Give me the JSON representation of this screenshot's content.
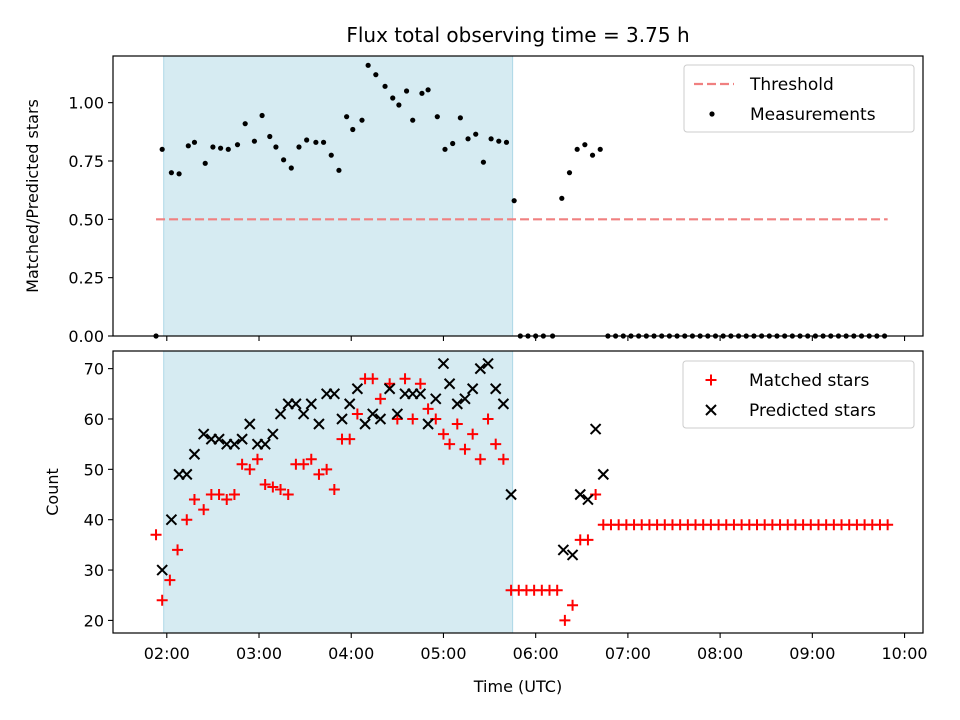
{
  "chart_data": [
    {
      "type": "scatter",
      "title": "Flux total observing time = 3.75 h",
      "ylabel": "Matched/Predicted stars",
      "xlabel": "",
      "ylim": [
        0.0,
        1.2
      ],
      "yticks": [
        0.0,
        0.25,
        0.5,
        0.75,
        1.0
      ],
      "ytick_labels": [
        "0.00",
        "0.25",
        "0.50",
        "0.75",
        "1.00"
      ],
      "xlim": [
        "01:25",
        "10:12"
      ],
      "xticks": [
        "02:00",
        "03:00",
        "04:00",
        "05:00",
        "06:00",
        "07:00",
        "08:00",
        "09:00",
        "10:00"
      ],
      "x_tick_labels_visible": false,
      "shaded_interval": {
        "from": "01:58",
        "to": "05:45",
        "color": "#add8e6"
      },
      "threshold": {
        "name": "Threshold",
        "value": 0.5,
        "from": "01:53",
        "to": "09:49",
        "color": "#f08080",
        "style": "dashed"
      },
      "legend_position": "upper right",
      "series": [
        {
          "name": "Measurements",
          "marker": "dot",
          "color": "#000000",
          "points": [
            [
              "01:53",
              0.0
            ],
            [
              "01:57",
              0.8
            ],
            [
              "02:03",
              0.7
            ],
            [
              "02:08",
              0.695
            ],
            [
              "02:14",
              0.815
            ],
            [
              "02:18",
              0.83
            ],
            [
              "02:25",
              0.74
            ],
            [
              "02:30",
              0.81
            ],
            [
              "02:35",
              0.805
            ],
            [
              "02:40",
              0.8
            ],
            [
              "02:46",
              0.82
            ],
            [
              "02:51",
              0.91
            ],
            [
              "02:57",
              0.835
            ],
            [
              "03:02",
              0.945
            ],
            [
              "03:07",
              0.855
            ],
            [
              "03:11",
              0.81
            ],
            [
              "03:16",
              0.755
            ],
            [
              "03:21",
              0.72
            ],
            [
              "03:26",
              0.81
            ],
            [
              "03:31",
              0.84
            ],
            [
              "03:37",
              0.83
            ],
            [
              "03:42",
              0.83
            ],
            [
              "03:47",
              0.775
            ],
            [
              "03:52",
              0.71
            ],
            [
              "03:57",
              0.94
            ],
            [
              "04:01",
              0.885
            ],
            [
              "04:07",
              0.925
            ],
            [
              "04:11",
              1.16
            ],
            [
              "04:16",
              1.12
            ],
            [
              "04:22",
              1.07
            ],
            [
              "04:27",
              1.02
            ],
            [
              "04:31",
              0.99
            ],
            [
              "04:36",
              1.05
            ],
            [
              "04:40",
              0.925
            ],
            [
              "04:46",
              1.04
            ],
            [
              "04:50",
              1.055
            ],
            [
              "04:56",
              0.94
            ],
            [
              "05:01",
              0.8
            ],
            [
              "05:06",
              0.825
            ],
            [
              "05:11",
              0.935
            ],
            [
              "05:16",
              0.845
            ],
            [
              "05:21",
              0.865
            ],
            [
              "05:26",
              0.745
            ],
            [
              "05:31",
              0.845
            ],
            [
              "05:36",
              0.835
            ],
            [
              "05:41",
              0.83
            ],
            [
              "05:46",
              0.58
            ],
            [
              "05:50",
              0.0
            ],
            [
              "05:55",
              0.0
            ],
            [
              "06:00",
              0.0
            ],
            [
              "06:05",
              0.0
            ],
            [
              "06:11",
              0.0
            ],
            [
              "06:17",
              0.59
            ],
            [
              "06:22",
              0.7
            ],
            [
              "06:27",
              0.8
            ],
            [
              "06:32",
              0.82
            ],
            [
              "06:37",
              0.775
            ],
            [
              "06:42",
              0.8
            ],
            [
              "06:47",
              0.0
            ],
            [
              "06:52",
              0.0
            ],
            [
              "06:57",
              0.0
            ],
            [
              "07:02",
              0.0
            ],
            [
              "07:07",
              0.0
            ],
            [
              "07:12",
              0.0
            ],
            [
              "07:17",
              0.0
            ],
            [
              "07:22",
              0.0
            ],
            [
              "07:27",
              0.0
            ],
            [
              "07:32",
              0.0
            ],
            [
              "07:37",
              0.0
            ],
            [
              "07:42",
              0.0
            ],
            [
              "07:47",
              0.0
            ],
            [
              "07:52",
              0.0
            ],
            [
              "07:57",
              0.0
            ],
            [
              "08:02",
              0.0
            ],
            [
              "08:07",
              0.0
            ],
            [
              "08:12",
              0.0
            ],
            [
              "08:17",
              0.0
            ],
            [
              "08:22",
              0.0
            ],
            [
              "08:27",
              0.0
            ],
            [
              "08:32",
              0.0
            ],
            [
              "08:37",
              0.0
            ],
            [
              "08:42",
              0.0
            ],
            [
              "08:47",
              0.0
            ],
            [
              "08:52",
              0.0
            ],
            [
              "08:57",
              0.0
            ],
            [
              "09:02",
              0.0
            ],
            [
              "09:07",
              0.0
            ],
            [
              "09:12",
              0.0
            ],
            [
              "09:17",
              0.0
            ],
            [
              "09:22",
              0.0
            ],
            [
              "09:27",
              0.0
            ],
            [
              "09:32",
              0.0
            ],
            [
              "09:37",
              0.0
            ],
            [
              "09:42",
              0.0
            ],
            [
              "09:47",
              0.0
            ]
          ]
        }
      ]
    },
    {
      "type": "scatter",
      "title": "",
      "ylabel": "Count",
      "xlabel": "Time (UTC)",
      "ylim": [
        17.5,
        73.5
      ],
      "yticks": [
        20,
        30,
        40,
        50,
        60,
        70
      ],
      "ytick_labels": [
        "20",
        "30",
        "40",
        "50",
        "60",
        "70"
      ],
      "xlim": [
        "01:25",
        "10:12"
      ],
      "xticks": [
        "02:00",
        "03:00",
        "04:00",
        "05:00",
        "06:00",
        "07:00",
        "08:00",
        "09:00",
        "10:00"
      ],
      "xtick_labels": [
        "02:00",
        "03:00",
        "04:00",
        "05:00",
        "06:00",
        "07:00",
        "08:00",
        "09:00",
        "10:00"
      ],
      "shaded_interval": {
        "from": "01:58",
        "to": "05:45",
        "color": "#add8e6"
      },
      "legend_position": "upper right",
      "series": [
        {
          "name": "Matched stars",
          "marker": "plus",
          "color": "#ff0000",
          "points": [
            [
              "01:53",
              37
            ],
            [
              "01:57",
              24
            ],
            [
              "02:02",
              28
            ],
            [
              "02:07",
              34
            ],
            [
              "02:13",
              40
            ],
            [
              "02:18",
              44
            ],
            [
              "02:24",
              42
            ],
            [
              "02:29",
              45
            ],
            [
              "02:34",
              45
            ],
            [
              "02:39",
              44
            ],
            [
              "02:44",
              45
            ],
            [
              "02:49",
              51
            ],
            [
              "02:54",
              50
            ],
            [
              "02:59",
              52
            ],
            [
              "03:04",
              47
            ],
            [
              "03:09",
              46.5
            ],
            [
              "03:14",
              46
            ],
            [
              "03:19",
              45
            ],
            [
              "03:24",
              51
            ],
            [
              "03:29",
              51
            ],
            [
              "03:34",
              52
            ],
            [
              "03:39",
              49
            ],
            [
              "03:44",
              50
            ],
            [
              "03:49",
              46
            ],
            [
              "03:54",
              56
            ],
            [
              "03:59",
              56
            ],
            [
              "04:04",
              61
            ],
            [
              "04:09",
              68
            ],
            [
              "04:14",
              68
            ],
            [
              "04:19",
              64
            ],
            [
              "04:25",
              67
            ],
            [
              "04:30",
              60
            ],
            [
              "04:35",
              68
            ],
            [
              "04:40",
              60
            ],
            [
              "04:45",
              67
            ],
            [
              "04:50",
              62
            ],
            [
              "04:55",
              60
            ],
            [
              "05:00",
              57
            ],
            [
              "05:04",
              55
            ],
            [
              "05:09",
              59
            ],
            [
              "05:14",
              54
            ],
            [
              "05:19",
              57
            ],
            [
              "05:24",
              52
            ],
            [
              "05:29",
              60
            ],
            [
              "05:34",
              55
            ],
            [
              "05:39",
              52
            ],
            [
              "05:44",
              26
            ],
            [
              "05:49",
              26
            ],
            [
              "05:54",
              26
            ],
            [
              "05:59",
              26
            ],
            [
              "06:04",
              26
            ],
            [
              "06:09",
              26
            ],
            [
              "06:14",
              26
            ],
            [
              "06:19",
              20
            ],
            [
              "06:24",
              23
            ],
            [
              "06:29",
              36
            ],
            [
              "06:34",
              36
            ],
            [
              "06:39",
              45
            ],
            [
              "06:44",
              39
            ],
            [
              "06:49",
              39
            ],
            [
              "06:54",
              39
            ],
            [
              "06:59",
              39
            ],
            [
              "07:04",
              39
            ],
            [
              "07:09",
              39
            ],
            [
              "07:14",
              39
            ],
            [
              "07:19",
              39
            ],
            [
              "07:24",
              39
            ],
            [
              "07:29",
              39
            ],
            [
              "07:34",
              39
            ],
            [
              "07:39",
              39
            ],
            [
              "07:44",
              39
            ],
            [
              "07:49",
              39
            ],
            [
              "07:54",
              39
            ],
            [
              "07:59",
              39
            ],
            [
              "08:04",
              39
            ],
            [
              "08:09",
              39
            ],
            [
              "08:14",
              39
            ],
            [
              "08:19",
              39
            ],
            [
              "08:24",
              39
            ],
            [
              "08:29",
              39
            ],
            [
              "08:34",
              39
            ],
            [
              "08:39",
              39
            ],
            [
              "08:44",
              39
            ],
            [
              "08:49",
              39
            ],
            [
              "08:54",
              39
            ],
            [
              "08:59",
              39
            ],
            [
              "09:04",
              39
            ],
            [
              "09:09",
              39
            ],
            [
              "09:14",
              39
            ],
            [
              "09:19",
              39
            ],
            [
              "09:24",
              39
            ],
            [
              "09:29",
              39
            ],
            [
              "09:34",
              39
            ],
            [
              "09:39",
              39
            ],
            [
              "09:44",
              39
            ],
            [
              "09:49",
              39
            ]
          ]
        },
        {
          "name": "Predicted stars",
          "marker": "x",
          "color": "#000000",
          "points": [
            [
              "01:57",
              30
            ],
            [
              "02:03",
              40
            ],
            [
              "02:08",
              49
            ],
            [
              "02:13",
              49
            ],
            [
              "02:18",
              53
            ],
            [
              "02:24",
              57
            ],
            [
              "02:29",
              56
            ],
            [
              "02:34",
              56
            ],
            [
              "02:39",
              55
            ],
            [
              "02:44",
              55
            ],
            [
              "02:49",
              56
            ],
            [
              "02:54",
              59
            ],
            [
              "02:59",
              55
            ],
            [
              "03:04",
              55
            ],
            [
              "03:09",
              57
            ],
            [
              "03:14",
              61
            ],
            [
              "03:19",
              63
            ],
            [
              "03:24",
              63
            ],
            [
              "03:29",
              61
            ],
            [
              "03:34",
              63
            ],
            [
              "03:39",
              59
            ],
            [
              "03:44",
              65
            ],
            [
              "03:49",
              65
            ],
            [
              "03:54",
              60
            ],
            [
              "03:59",
              63
            ],
            [
              "04:04",
              66
            ],
            [
              "04:09",
              59
            ],
            [
              "04:14",
              61
            ],
            [
              "04:19",
              60
            ],
            [
              "04:25",
              66
            ],
            [
              "04:30",
              61
            ],
            [
              "04:35",
              65
            ],
            [
              "04:40",
              65
            ],
            [
              "04:45",
              65
            ],
            [
              "04:50",
              59
            ],
            [
              "04:55",
              64
            ],
            [
              "05:00",
              71
            ],
            [
              "05:04",
              67
            ],
            [
              "05:09",
              63
            ],
            [
              "05:14",
              64
            ],
            [
              "05:19",
              66
            ],
            [
              "05:24",
              70
            ],
            [
              "05:29",
              71
            ],
            [
              "05:34",
              66
            ],
            [
              "05:39",
              63
            ],
            [
              "05:44",
              45
            ],
            [
              "06:18",
              34
            ],
            [
              "06:24",
              33
            ],
            [
              "06:29",
              45
            ],
            [
              "06:34",
              44
            ],
            [
              "06:39",
              58
            ],
            [
              "06:44",
              49
            ]
          ]
        }
      ]
    }
  ]
}
